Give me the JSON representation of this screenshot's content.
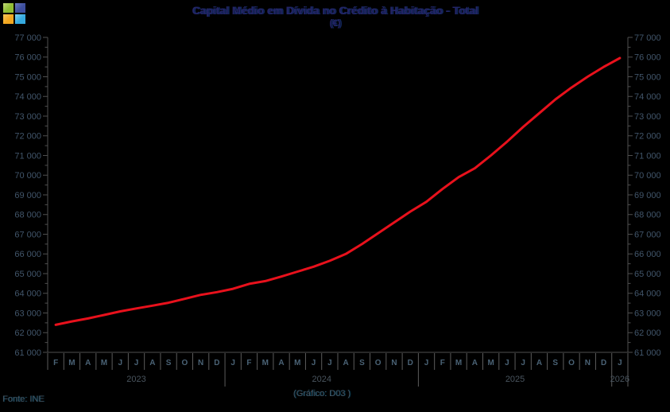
{
  "logo": {
    "squares": [
      {
        "name": "green",
        "color": "#8fbc33",
        "light": "#c2d878"
      },
      {
        "name": "indigo",
        "color": "#3d4e9d",
        "light": "#6b79bd"
      },
      {
        "name": "amber",
        "color": "#f3a71f",
        "light": "#f8c95e"
      },
      {
        "name": "sky",
        "color": "#35a9de",
        "light": "#7fd0ef"
      }
    ]
  },
  "footer": {
    "source": "Fonte: INE",
    "chart_note": "(Gráfico: D03 )"
  },
  "colors": {
    "background": "#000000",
    "axis": "#4f4f4f",
    "separator": "#5c5c5c",
    "title_text": "#242568",
    "tick_text": "#41556a",
    "line": "#e8111c"
  },
  "chart_data": {
    "type": "line",
    "title": "Capital Médio em Dívida no Crédito à Habitação - Total",
    "unit": "(€)",
    "line_color": "#e8111c",
    "grid": false,
    "ylim": [
      61000,
      77000
    ],
    "y_tick_step": 1000,
    "y_minor_tick_step": 500,
    "y_tick_format": "space-thousands",
    "x_years": [
      {
        "label": "2023",
        "months": [
          "F",
          "M",
          "A",
          "M",
          "J",
          "J",
          "A",
          "S",
          "O",
          "N",
          "D"
        ]
      },
      {
        "label": "2024",
        "months": [
          "J",
          "F",
          "M",
          "A",
          "M",
          "J",
          "J",
          "A",
          "S",
          "O",
          "N",
          "D"
        ]
      },
      {
        "label": "2025",
        "months": [
          "J",
          "F",
          "M",
          "A",
          "M",
          "J",
          "J",
          "A",
          "S",
          "O",
          "N",
          "D"
        ]
      },
      {
        "label": "2026",
        "months": [
          "J"
        ]
      }
    ],
    "values": [
      62400,
      62570,
      62720,
      62900,
      63080,
      63230,
      63370,
      63520,
      63720,
      63920,
      64060,
      64230,
      64480,
      64620,
      64850,
      65100,
      65350,
      65650,
      66000,
      66500,
      67050,
      67600,
      68150,
      68650,
      69300,
      69900,
      70350,
      71000,
      71700,
      72450,
      73150,
      73850,
      74450,
      75000,
      75500,
      75950
    ]
  }
}
